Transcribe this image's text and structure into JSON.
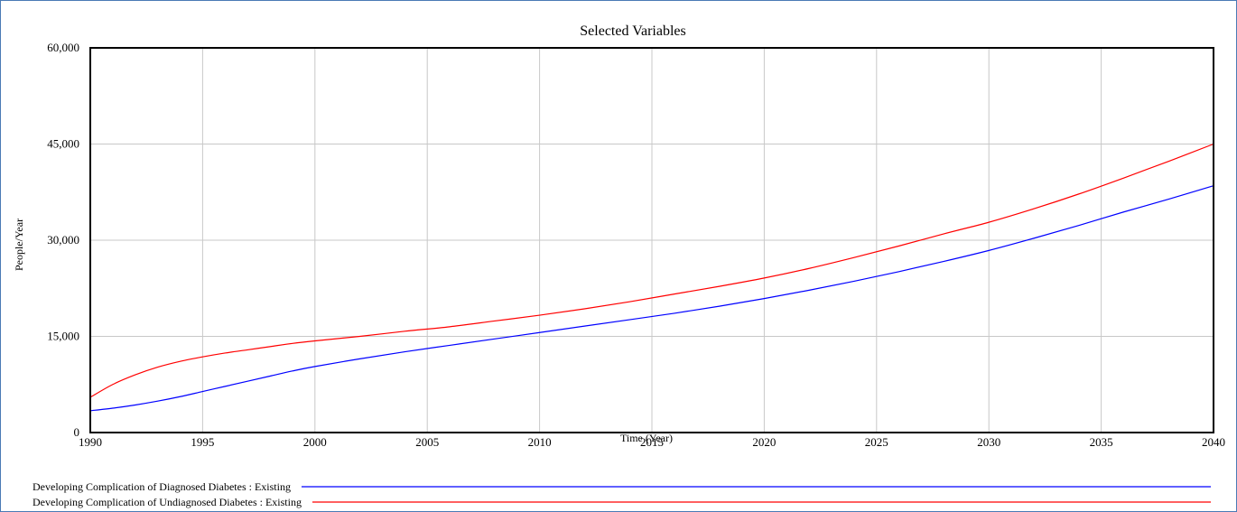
{
  "chart_data": {
    "type": "line",
    "title": "Selected Variables",
    "xlabel": "Time (Year)",
    "ylabel": "People/Year",
    "xlim": [
      1990,
      2040
    ],
    "ylim": [
      0,
      60000
    ],
    "grid": true,
    "legend_position": "bottom",
    "x_ticks": [
      1990,
      1995,
      2000,
      2005,
      2010,
      2015,
      2020,
      2025,
      2030,
      2035,
      2040
    ],
    "x_tick_labels": [
      "1990",
      "1995",
      "2000",
      "2005",
      "2010",
      "2015",
      "2020",
      "2025",
      "2030",
      "2035",
      "2040"
    ],
    "y_ticks": [
      0,
      15000,
      30000,
      45000,
      60000
    ],
    "y_tick_labels": [
      "0",
      "15,000",
      "30,000",
      "45,000",
      "60,000"
    ],
    "x": [
      1990,
      1991,
      1992,
      1993,
      1994,
      1995,
      1996,
      1997,
      1998,
      1999,
      2000,
      2002,
      2004,
      2006,
      2008,
      2010,
      2012,
      2014,
      2016,
      2018,
      2020,
      2022,
      2024,
      2026,
      2028,
      2030,
      2032,
      2034,
      2036,
      2038,
      2040
    ],
    "series": [
      {
        "name": "Developing Complication of Diagnosed Diabetes : Existing",
        "color": "#0000ff",
        "values": [
          3400,
          3800,
          4300,
          4900,
          5600,
          6400,
          7200,
          8000,
          8800,
          9600,
          10300,
          11500,
          12600,
          13600,
          14600,
          15600,
          16600,
          17600,
          18600,
          19700,
          20900,
          22200,
          23600,
          25100,
          26700,
          28400,
          30300,
          32300,
          34400,
          36400,
          38500
        ]
      },
      {
        "name": "Developing Complication of Undiagnosed Diabetes : Existing",
        "color": "#ff0000",
        "values": [
          5500,
          7500,
          9000,
          10200,
          11100,
          11800,
          12400,
          12900,
          13400,
          13900,
          14300,
          15000,
          15800,
          16500,
          17400,
          18300,
          19300,
          20400,
          21600,
          22800,
          24100,
          25600,
          27300,
          29100,
          31000,
          32800,
          34900,
          37200,
          39700,
          42300,
          45000
        ]
      }
    ]
  }
}
